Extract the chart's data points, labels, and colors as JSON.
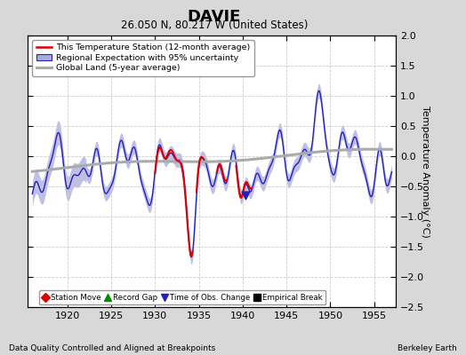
{
  "title": "DAVIE",
  "subtitle": "26.050 N, 80.217 W (United States)",
  "ylabel": "Temperature Anomaly (°C)",
  "footer_left": "Data Quality Controlled and Aligned at Breakpoints",
  "footer_right": "Berkeley Earth",
  "xlim": [
    1915.5,
    1957.5
  ],
  "ylim": [
    -2.5,
    2.0
  ],
  "yticks": [
    -2.5,
    -2.0,
    -1.5,
    -1.0,
    -0.5,
    0.0,
    0.5,
    1.0,
    1.5,
    2.0
  ],
  "xticks": [
    1920,
    1925,
    1930,
    1935,
    1940,
    1945,
    1950,
    1955
  ],
  "bg_color": "#d8d8d8",
  "plot_bg": "#ffffff",
  "regional_color": "#2222bb",
  "regional_fill": "#aaaadd",
  "station_color": "#dd0000",
  "global_color": "#aaaaaa",
  "legend_labels": [
    "This Temperature Station (12-month average)",
    "Regional Expectation with 95% uncertainty",
    "Global Land (5-year average)"
  ],
  "bottom_legend": [
    "Station Move",
    "Record Gap",
    "Time of Obs. Change",
    "Empirical Break"
  ],
  "bottom_legend_colors": [
    "#dd0000",
    "#008800",
    "#2222bb",
    "#000000"
  ],
  "bottom_legend_markers": [
    "D",
    "^",
    "v",
    "s"
  ]
}
